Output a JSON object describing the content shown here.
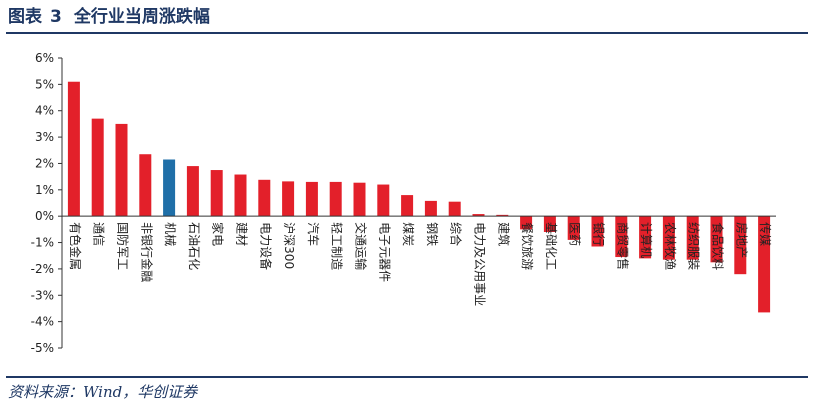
{
  "header": {
    "figure_label": "图表",
    "figure_number": "3",
    "title": "全行业当周涨跌幅"
  },
  "source": "资料来源：Wind，华创证券",
  "colors": {
    "bar": "#e3202a",
    "highlight": "#1f6fa8",
    "frame": "#1f3864"
  },
  "chart_data": {
    "type": "bar",
    "title": "",
    "xlabel": "",
    "ylabel": "",
    "ylim": [
      -5,
      6
    ],
    "yticks": [
      6,
      5,
      4,
      3,
      2,
      1,
      0,
      -1,
      -2,
      -3,
      -4,
      -5
    ],
    "ytick_labels": [
      "6%",
      "5%",
      "4%",
      "3%",
      "2%",
      "1%",
      "0%",
      "-1%",
      "-2%",
      "-3%",
      "-4%",
      "-5%"
    ],
    "unit": "%",
    "highlight_category": "机械",
    "categories": [
      "有色金属",
      "通信",
      "国防军工",
      "非银行金融",
      "机械",
      "石油石化",
      "家电",
      "建材",
      "电力设备",
      "沪深300",
      "汽车",
      "轻工制造",
      "交通运输",
      "电子元器件",
      "煤炭",
      "钢铁",
      "综合",
      "电力及公用事业",
      "建筑",
      "餐饮旅游",
      "基础化工",
      "医药",
      "银行",
      "商贸零售",
      "计算机",
      "农林牧渔",
      "纺织服装",
      "食品饮料",
      "房地产",
      "传媒"
    ],
    "values": [
      5.1,
      3.7,
      3.5,
      2.35,
      2.15,
      1.9,
      1.75,
      1.58,
      1.38,
      1.32,
      1.3,
      1.3,
      1.27,
      1.2,
      0.8,
      0.58,
      0.55,
      0.08,
      0.05,
      -0.5,
      -0.6,
      -0.9,
      -1.15,
      -1.55,
      -1.6,
      -1.65,
      -1.65,
      -1.75,
      -2.2,
      -3.65
    ]
  }
}
